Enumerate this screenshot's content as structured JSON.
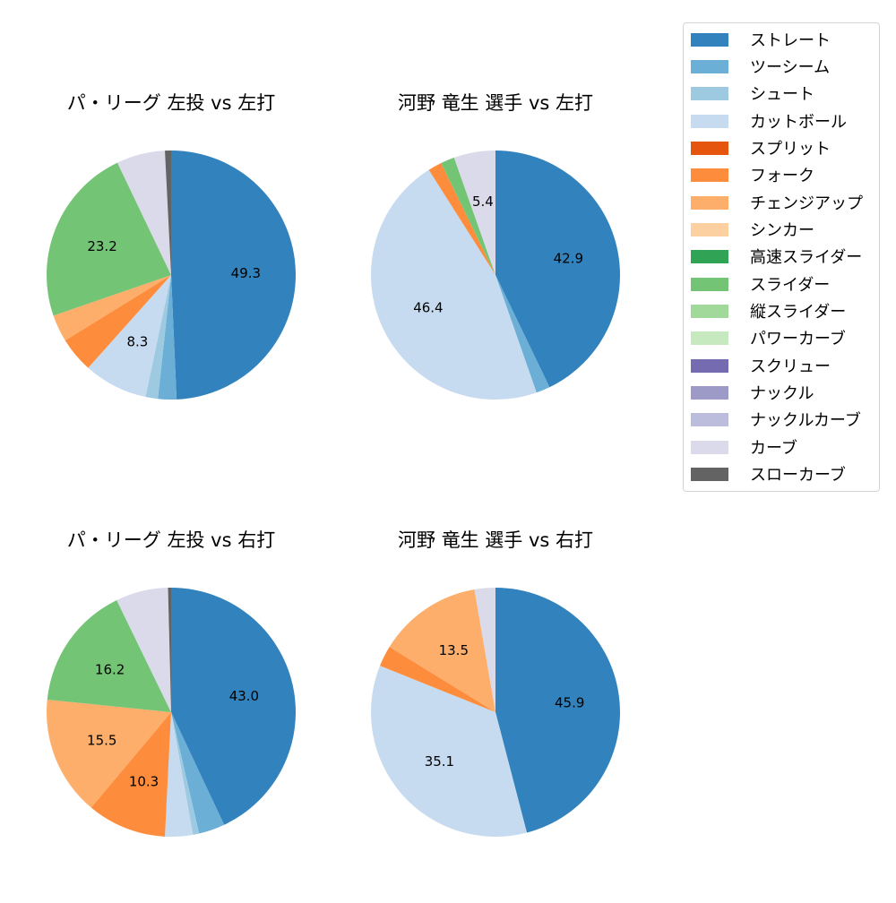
{
  "legend": {
    "items": [
      {
        "label": "ストレート",
        "color": "#3182bd"
      },
      {
        "label": "ツーシーム",
        "color": "#6baed6"
      },
      {
        "label": "シュート",
        "color": "#9ecae1"
      },
      {
        "label": "カットボール",
        "color": "#c6dbef"
      },
      {
        "label": "スプリット",
        "color": "#e6550d"
      },
      {
        "label": "フォーク",
        "color": "#fd8d3c"
      },
      {
        "label": "チェンジアップ",
        "color": "#fdae6b"
      },
      {
        "label": "シンカー",
        "color": "#fdd0a2"
      },
      {
        "label": "高速スライダー",
        "color": "#31a354"
      },
      {
        "label": "スライダー",
        "color": "#74c476"
      },
      {
        "label": "縦スライダー",
        "color": "#a1d99b"
      },
      {
        "label": "パワーカーブ",
        "color": "#c7e9c0"
      },
      {
        "label": "スクリュー",
        "color": "#756bb1"
      },
      {
        "label": "ナックル",
        "color": "#9e9ac8"
      },
      {
        "label": "ナックルカーブ",
        "color": "#bcbddc"
      },
      {
        "label": "カーブ",
        "color": "#dadaeb"
      },
      {
        "label": "スローカーブ",
        "color": "#636363"
      }
    ]
  },
  "chart_data": [
    {
      "type": "pie",
      "title": "パ・リーグ 左投 vs 左打",
      "categories": [
        "ストレート",
        "ツーシーム",
        "シュート",
        "カットボール",
        "フォーク",
        "チェンジアップ",
        "スライダー",
        "カーブ",
        "スローカーブ"
      ],
      "values": [
        49.3,
        2.4,
        1.6,
        8.3,
        4.6,
        3.5,
        23.2,
        6.3,
        0.8
      ],
      "labels_shown": [
        "49.3",
        "",
        "",
        "8.3",
        "",
        "",
        "23.2",
        "",
        ""
      ],
      "start_angle": 90,
      "direction": "clockwise"
    },
    {
      "type": "pie",
      "title": "河野 竜生 選手 vs 左打",
      "categories": [
        "ストレート",
        "ツーシーム",
        "カットボール",
        "フォーク",
        "スライダー",
        "カーブ"
      ],
      "values": [
        42.9,
        1.8,
        46.4,
        1.8,
        1.8,
        5.4
      ],
      "labels_shown": [
        "42.9",
        "",
        "46.4",
        "",
        "",
        "5.4"
      ],
      "start_angle": 90,
      "direction": "clockwise"
    },
    {
      "type": "pie",
      "title": "パ・リーグ 左投 vs 右打",
      "categories": [
        "ストレート",
        "ツーシーム",
        "シュート",
        "カットボール",
        "フォーク",
        "チェンジアップ",
        "スライダー",
        "カーブ",
        "スローカーブ"
      ],
      "values": [
        43.0,
        3.4,
        0.8,
        3.6,
        10.3,
        15.5,
        16.2,
        6.8,
        0.4
      ],
      "labels_shown": [
        "43.0",
        "",
        "",
        "",
        "10.3",
        "15.5",
        "16.2",
        "",
        ""
      ],
      "start_angle": 90,
      "direction": "clockwise"
    },
    {
      "type": "pie",
      "title": "河野 竜生 選手 vs 右打",
      "categories": [
        "ストレート",
        "カットボール",
        "フォーク",
        "チェンジアップ",
        "カーブ"
      ],
      "values": [
        45.9,
        35.1,
        2.7,
        13.5,
        2.7
      ],
      "labels_shown": [
        "45.9",
        "35.1",
        "",
        "13.5",
        ""
      ],
      "start_angle": 90,
      "direction": "clockwise"
    }
  ]
}
